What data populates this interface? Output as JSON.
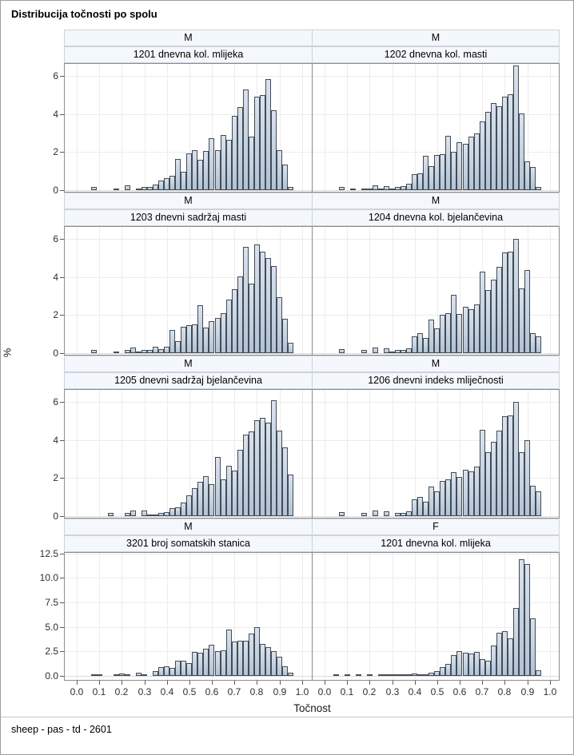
{
  "title": "Distribucija točnosti po spolu",
  "footer": "sheep - pas - td - 2601",
  "axes": {
    "x_label": "Točnost",
    "y_label": "%",
    "x_tick_labels": [
      "0.0",
      "0.1",
      "0.2",
      "0.3",
      "0.4",
      "0.5",
      "0.6",
      "0.7",
      "0.8",
      "0.9",
      "1.0"
    ],
    "x_tick_values": [
      0,
      0.1,
      0.2,
      0.3,
      0.4,
      0.5,
      0.6,
      0.7,
      0.8,
      0.9,
      1.0
    ],
    "y_ticks_rows_0_2": {
      "labels": [
        "0",
        "2",
        "4",
        "6"
      ],
      "values": [
        0,
        2,
        4,
        6
      ]
    },
    "y_ticks_row_3": {
      "labels": [
        "0.0",
        "2.5",
        "5.0",
        "7.5",
        "10.0",
        "12.5"
      ],
      "values": [
        0,
        2.5,
        5,
        7.5,
        10,
        12.5
      ]
    }
  },
  "colors": {
    "bar_fill_top": "#dae2ec",
    "bar_fill_bottom": "#b2c2d5",
    "bar_border": "#424c56",
    "strip_bg": "#f4f7fc",
    "strip_border": "#ccd3dd",
    "plot_border": "#8c8c8c",
    "gridline": "#ececec",
    "figure_border": "#9d9d9d"
  },
  "chart_data": {
    "type": "bar",
    "subtype": "histogram-panel",
    "title": "Distribucija točnosti po spolu",
    "xlabel": "Točnost",
    "ylabel": "%",
    "x_bin_width": 0.025,
    "xlim": [
      0,
      1.0
    ],
    "grid": true,
    "layout": {
      "rows": 4,
      "cols": 2
    },
    "panels": [
      {
        "sex": "M",
        "trait": "1201 dnevna kol. mlijeka",
        "ylim": [
          0,
          6.7
        ],
        "bars": [
          [
            0.075,
            0.15
          ],
          [
            0.175,
            0.1
          ],
          [
            0.225,
            0.25
          ],
          [
            0.275,
            0.1
          ],
          [
            0.3,
            0.15
          ],
          [
            0.325,
            0.15
          ],
          [
            0.35,
            0.3
          ],
          [
            0.375,
            0.5
          ],
          [
            0.4,
            0.65
          ],
          [
            0.425,
            0.75
          ],
          [
            0.45,
            1.65
          ],
          [
            0.475,
            0.95
          ],
          [
            0.5,
            1.95
          ],
          [
            0.525,
            2.1
          ],
          [
            0.55,
            1.6
          ],
          [
            0.575,
            2.05
          ],
          [
            0.6,
            2.75
          ],
          [
            0.625,
            2.1
          ],
          [
            0.65,
            2.9
          ],
          [
            0.675,
            2.65
          ],
          [
            0.7,
            3.9
          ],
          [
            0.725,
            4.35
          ],
          [
            0.75,
            5.3
          ],
          [
            0.775,
            2.8
          ],
          [
            0.8,
            4.9
          ],
          [
            0.825,
            5.0
          ],
          [
            0.85,
            5.85
          ],
          [
            0.875,
            4.2
          ],
          [
            0.9,
            2.1
          ],
          [
            0.925,
            1.35
          ],
          [
            0.95,
            0.15
          ]
        ]
      },
      {
        "sex": "M",
        "trait": "1202 dnevna kol. masti",
        "ylim": [
          0,
          6.7
        ],
        "bars": [
          [
            0.075,
            0.15
          ],
          [
            0.125,
            0.05
          ],
          [
            0.175,
            0.1
          ],
          [
            0.2,
            0.1
          ],
          [
            0.225,
            0.25
          ],
          [
            0.25,
            0.1
          ],
          [
            0.275,
            0.2
          ],
          [
            0.3,
            0.1
          ],
          [
            0.325,
            0.15
          ],
          [
            0.35,
            0.2
          ],
          [
            0.375,
            0.35
          ],
          [
            0.4,
            0.85
          ],
          [
            0.425,
            0.9
          ],
          [
            0.45,
            1.8
          ],
          [
            0.475,
            1.25
          ],
          [
            0.5,
            1.85
          ],
          [
            0.525,
            1.9
          ],
          [
            0.55,
            2.85
          ],
          [
            0.575,
            2.0
          ],
          [
            0.6,
            2.5
          ],
          [
            0.625,
            2.45
          ],
          [
            0.65,
            2.8
          ],
          [
            0.675,
            3.0
          ],
          [
            0.7,
            3.6
          ],
          [
            0.725,
            4.1
          ],
          [
            0.75,
            4.6
          ],
          [
            0.775,
            4.4
          ],
          [
            0.8,
            4.9
          ],
          [
            0.825,
            5.05
          ],
          [
            0.85,
            6.55
          ],
          [
            0.875,
            4.05
          ],
          [
            0.9,
            1.5
          ],
          [
            0.925,
            1.2
          ],
          [
            0.95,
            0.15
          ]
        ]
      },
      {
        "sex": "M",
        "trait": "1203 dnevni sadržaj masti",
        "ylim": [
          0,
          6.7
        ],
        "bars": [
          [
            0.075,
            0.15
          ],
          [
            0.175,
            0.1
          ],
          [
            0.225,
            0.15
          ],
          [
            0.25,
            0.3
          ],
          [
            0.275,
            0.1
          ],
          [
            0.3,
            0.15
          ],
          [
            0.325,
            0.15
          ],
          [
            0.35,
            0.35
          ],
          [
            0.375,
            0.2
          ],
          [
            0.4,
            0.35
          ],
          [
            0.425,
            1.2
          ],
          [
            0.45,
            0.65
          ],
          [
            0.475,
            1.4
          ],
          [
            0.5,
            1.45
          ],
          [
            0.525,
            1.5
          ],
          [
            0.55,
            2.5
          ],
          [
            0.575,
            1.35
          ],
          [
            0.6,
            1.7
          ],
          [
            0.625,
            1.85
          ],
          [
            0.65,
            2.1
          ],
          [
            0.675,
            2.8
          ],
          [
            0.7,
            3.35
          ],
          [
            0.725,
            4.05
          ],
          [
            0.75,
            5.6
          ],
          [
            0.775,
            3.65
          ],
          [
            0.8,
            5.7
          ],
          [
            0.825,
            5.35
          ],
          [
            0.85,
            5.0
          ],
          [
            0.875,
            4.6
          ],
          [
            0.9,
            2.95
          ],
          [
            0.925,
            1.8
          ],
          [
            0.95,
            0.55
          ]
        ]
      },
      {
        "sex": "M",
        "trait": "1204 dnevna kol. bjelančevina",
        "ylim": [
          0,
          6.7
        ],
        "bars": [
          [
            0.075,
            0.2
          ],
          [
            0.175,
            0.15
          ],
          [
            0.225,
            0.3
          ],
          [
            0.275,
            0.25
          ],
          [
            0.3,
            0.1
          ],
          [
            0.325,
            0.15
          ],
          [
            0.35,
            0.15
          ],
          [
            0.375,
            0.25
          ],
          [
            0.4,
            0.9
          ],
          [
            0.425,
            1.05
          ],
          [
            0.45,
            0.8
          ],
          [
            0.475,
            1.75
          ],
          [
            0.5,
            1.3
          ],
          [
            0.525,
            2.0
          ],
          [
            0.55,
            2.1
          ],
          [
            0.575,
            3.05
          ],
          [
            0.6,
            2.05
          ],
          [
            0.625,
            2.45
          ],
          [
            0.65,
            2.3
          ],
          [
            0.675,
            2.55
          ],
          [
            0.7,
            4.3
          ],
          [
            0.725,
            3.3
          ],
          [
            0.75,
            3.85
          ],
          [
            0.775,
            4.55
          ],
          [
            0.8,
            5.3
          ],
          [
            0.825,
            5.35
          ],
          [
            0.85,
            6.0
          ],
          [
            0.875,
            3.4
          ],
          [
            0.9,
            4.35
          ],
          [
            0.925,
            1.05
          ],
          [
            0.95,
            0.9
          ]
        ]
      },
      {
        "sex": "M",
        "trait": "1205 dnevni sadržaj bjelančevina",
        "ylim": [
          0,
          6.7
        ],
        "bars": [
          [
            0.15,
            0.15
          ],
          [
            0.225,
            0.15
          ],
          [
            0.25,
            0.3
          ],
          [
            0.3,
            0.3
          ],
          [
            0.325,
            0.1
          ],
          [
            0.35,
            0.1
          ],
          [
            0.375,
            0.15
          ],
          [
            0.4,
            0.2
          ],
          [
            0.425,
            0.4
          ],
          [
            0.45,
            0.45
          ],
          [
            0.475,
            0.7
          ],
          [
            0.5,
            1.1
          ],
          [
            0.525,
            1.45
          ],
          [
            0.55,
            1.8
          ],
          [
            0.575,
            2.1
          ],
          [
            0.6,
            1.7
          ],
          [
            0.625,
            3.1
          ],
          [
            0.65,
            1.95
          ],
          [
            0.675,
            2.65
          ],
          [
            0.7,
            2.4
          ],
          [
            0.725,
            3.5
          ],
          [
            0.75,
            4.3
          ],
          [
            0.775,
            4.45
          ],
          [
            0.8,
            5.05
          ],
          [
            0.825,
            5.15
          ],
          [
            0.85,
            4.9
          ],
          [
            0.875,
            6.1
          ],
          [
            0.9,
            4.5
          ],
          [
            0.925,
            3.6
          ],
          [
            0.95,
            2.2
          ]
        ]
      },
      {
        "sex": "M",
        "trait": "1206 dnevni indeks mliječnosti",
        "ylim": [
          0,
          6.7
        ],
        "bars": [
          [
            0.075,
            0.2
          ],
          [
            0.175,
            0.15
          ],
          [
            0.225,
            0.3
          ],
          [
            0.275,
            0.25
          ],
          [
            0.325,
            0.15
          ],
          [
            0.35,
            0.15
          ],
          [
            0.375,
            0.25
          ],
          [
            0.4,
            0.9
          ],
          [
            0.425,
            1.0
          ],
          [
            0.45,
            0.75
          ],
          [
            0.475,
            1.55
          ],
          [
            0.5,
            1.3
          ],
          [
            0.525,
            1.85
          ],
          [
            0.55,
            1.95
          ],
          [
            0.575,
            2.3
          ],
          [
            0.6,
            2.05
          ],
          [
            0.625,
            2.45
          ],
          [
            0.65,
            2.35
          ],
          [
            0.675,
            2.6
          ],
          [
            0.7,
            4.55
          ],
          [
            0.725,
            3.35
          ],
          [
            0.75,
            3.9
          ],
          [
            0.775,
            4.5
          ],
          [
            0.8,
            5.25
          ],
          [
            0.825,
            5.3
          ],
          [
            0.85,
            6.0
          ],
          [
            0.875,
            3.35
          ],
          [
            0.9,
            4.0
          ],
          [
            0.925,
            1.6
          ],
          [
            0.95,
            1.3
          ]
        ]
      },
      {
        "sex": "M",
        "trait": "3201 broj somatskih stanica",
        "ylim": [
          0,
          13.0
        ],
        "bars": [
          [
            0.075,
            0.05
          ],
          [
            0.1,
            0.1
          ],
          [
            0.175,
            0.15
          ],
          [
            0.2,
            0.25
          ],
          [
            0.225,
            0.15
          ],
          [
            0.275,
            0.35
          ],
          [
            0.3,
            0.1
          ],
          [
            0.35,
            0.5
          ],
          [
            0.375,
            0.9
          ],
          [
            0.4,
            1.0
          ],
          [
            0.425,
            0.85
          ],
          [
            0.45,
            1.55
          ],
          [
            0.475,
            1.55
          ],
          [
            0.5,
            1.3
          ],
          [
            0.525,
            2.45
          ],
          [
            0.55,
            2.4
          ],
          [
            0.575,
            2.8
          ],
          [
            0.6,
            3.15
          ],
          [
            0.625,
            2.5
          ],
          [
            0.65,
            2.6
          ],
          [
            0.675,
            4.75
          ],
          [
            0.7,
            3.5
          ],
          [
            0.725,
            3.55
          ],
          [
            0.75,
            3.6
          ],
          [
            0.775,
            4.35
          ],
          [
            0.8,
            5.0
          ],
          [
            0.825,
            3.25
          ],
          [
            0.85,
            2.9
          ],
          [
            0.875,
            2.5
          ],
          [
            0.9,
            1.95
          ],
          [
            0.925,
            1.0
          ],
          [
            0.95,
            0.3
          ]
        ]
      },
      {
        "sex": "F",
        "trait": "1201 dnevna kol. mlijeka",
        "ylim": [
          0,
          13.0
        ],
        "bars": [
          [
            0.05,
            0.05
          ],
          [
            0.1,
            0.05
          ],
          [
            0.15,
            0.05
          ],
          [
            0.2,
            0.05
          ],
          [
            0.25,
            0.1
          ],
          [
            0.275,
            0.1
          ],
          [
            0.3,
            0.15
          ],
          [
            0.325,
            0.15
          ],
          [
            0.35,
            0.15
          ],
          [
            0.375,
            0.2
          ],
          [
            0.4,
            0.25
          ],
          [
            0.425,
            0.2
          ],
          [
            0.45,
            0.15
          ],
          [
            0.475,
            0.3
          ],
          [
            0.5,
            0.5
          ],
          [
            0.525,
            0.9
          ],
          [
            0.55,
            1.25
          ],
          [
            0.575,
            2.1
          ],
          [
            0.6,
            2.5
          ],
          [
            0.625,
            2.35
          ],
          [
            0.65,
            2.3
          ],
          [
            0.675,
            2.45
          ],
          [
            0.7,
            1.7
          ],
          [
            0.725,
            1.55
          ],
          [
            0.75,
            3.1
          ],
          [
            0.775,
            4.4
          ],
          [
            0.8,
            4.55
          ],
          [
            0.825,
            3.85
          ],
          [
            0.85,
            6.9
          ],
          [
            0.875,
            11.9
          ],
          [
            0.9,
            11.4
          ],
          [
            0.925,
            5.9
          ],
          [
            0.95,
            0.55
          ]
        ]
      }
    ]
  }
}
